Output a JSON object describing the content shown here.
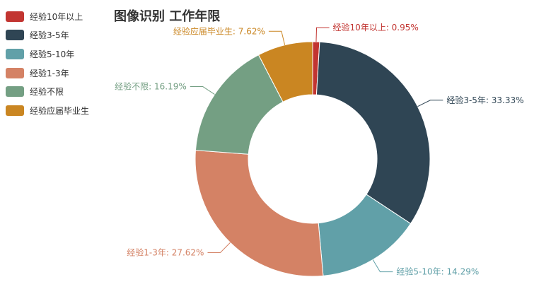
{
  "chart_data": {
    "type": "pie",
    "variant": "donut",
    "title": "图像识别 工作年限",
    "legend_position": "top-left",
    "slices": [
      {
        "name": "经验10年以上",
        "value": 0.95,
        "label": "经验10年以上: 0.95%",
        "color": "#c23531"
      },
      {
        "name": "经验3-5年",
        "value": 33.33,
        "label": "经验3-5年: 33.33%",
        "color": "#2f4554"
      },
      {
        "name": "经验5-10年",
        "value": 14.29,
        "label": "经验5-10年: 14.29%",
        "color": "#61a0a8"
      },
      {
        "name": "经验1-3年",
        "value": 27.62,
        "label": "经验1-3年: 27.62%",
        "color": "#d48265"
      },
      {
        "name": "经验不限",
        "value": 16.19,
        "label": "经验不限: 16.19%",
        "color": "#749f83"
      },
      {
        "name": "经验应届毕业生",
        "value": 7.62,
        "label": "经验应届毕业生: 7.62%",
        "color": "#ca8622"
      }
    ]
  }
}
